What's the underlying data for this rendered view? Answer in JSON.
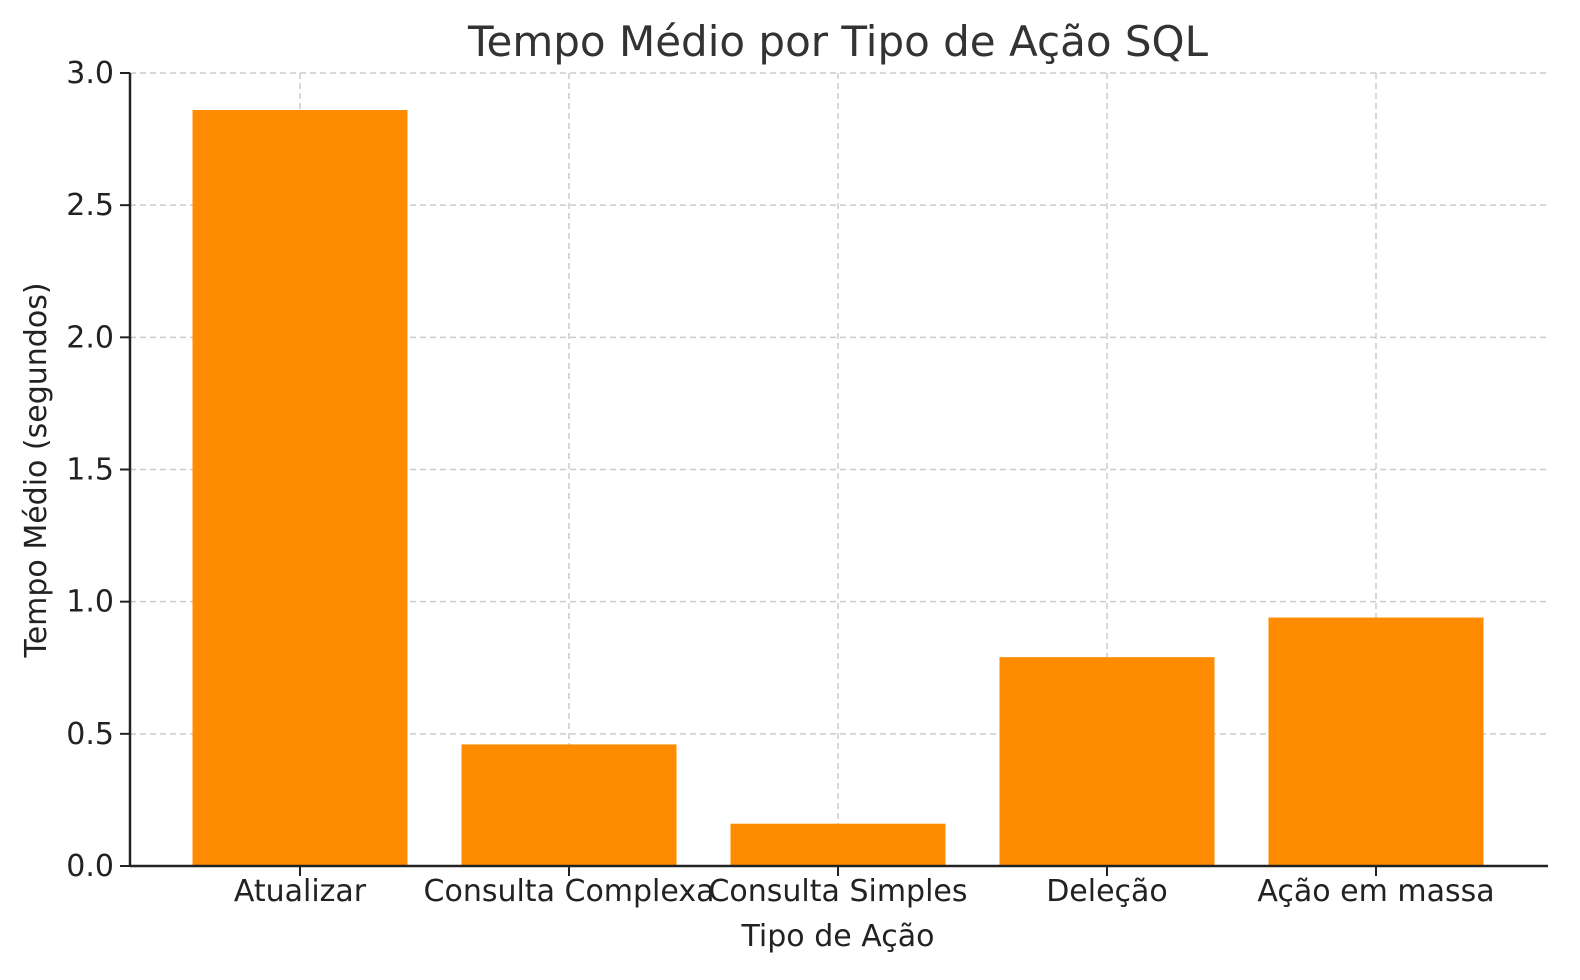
{
  "chart_data": {
    "type": "bar",
    "title": "Tempo Médio por Tipo de Ação SQL",
    "xlabel": "Tipo de Ação",
    "ylabel": "Tempo Médio (segundos)",
    "categories": [
      "Atualizar",
      "Consulta Complexa",
      "Consulta Simples",
      "Deleção",
      "Ação em massa"
    ],
    "values": [
      2.86,
      0.46,
      0.16,
      0.79,
      0.94
    ],
    "ylim": [
      0,
      3.0
    ],
    "yticks": [
      "0.0",
      "0.5",
      "1.0",
      "1.5",
      "2.0",
      "2.5",
      "3.0"
    ],
    "grid": true,
    "legend": "none",
    "colors": {
      "bar": "#ff8c00",
      "grid": "#cccccc",
      "axis": "#222222"
    }
  }
}
